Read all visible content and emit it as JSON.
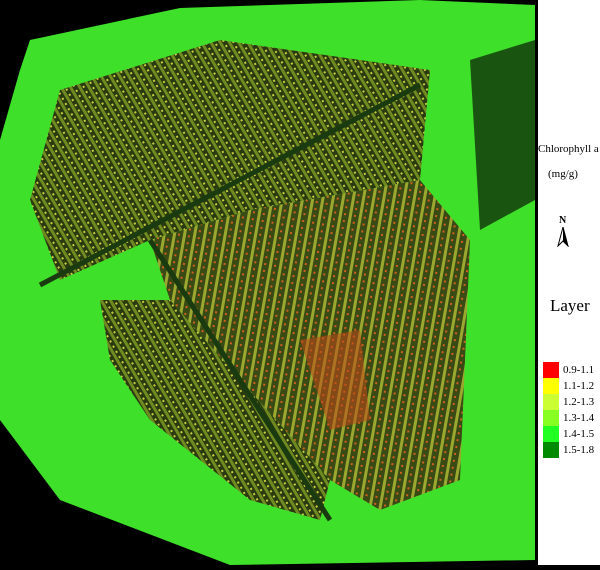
{
  "legend": {
    "title": "Chlorophyll a",
    "unit": "(mg/g)",
    "north_label": "N",
    "layer_label": "Layer",
    "classes": [
      {
        "label": "0.9-1.1",
        "color": "#ff0000"
      },
      {
        "label": "1.1-1.2",
        "color": "#ffff00"
      },
      {
        "label": "1.2-1.3",
        "color": "#ccff33"
      },
      {
        "label": "1.3-1.4",
        "color": "#88ff22"
      },
      {
        "label": "1.4-1.5",
        "color": "#22ff22"
      },
      {
        "label": "1.5-1.8",
        "color": "#008a00"
      }
    ]
  }
}
